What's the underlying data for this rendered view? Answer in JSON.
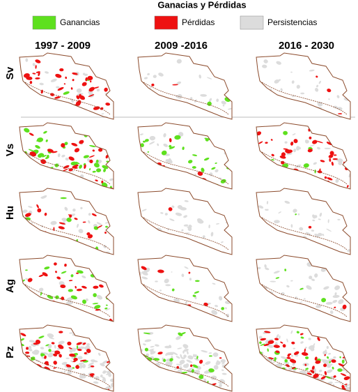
{
  "title": "Ganacias y Pérdidas",
  "legend": [
    {
      "label": "Ganancias",
      "color": "#5ee01e"
    },
    {
      "label": "Pérdidas",
      "color": "#ee1111"
    },
    {
      "label": "Persistencias",
      "color": "#dcdcdc"
    }
  ],
  "columns": [
    "1997 - 2009",
    "2009 -2016",
    "2016 - 2030"
  ],
  "rows": [
    "Sv",
    "Vs",
    "Hu",
    "Ag",
    "Pz"
  ]
}
